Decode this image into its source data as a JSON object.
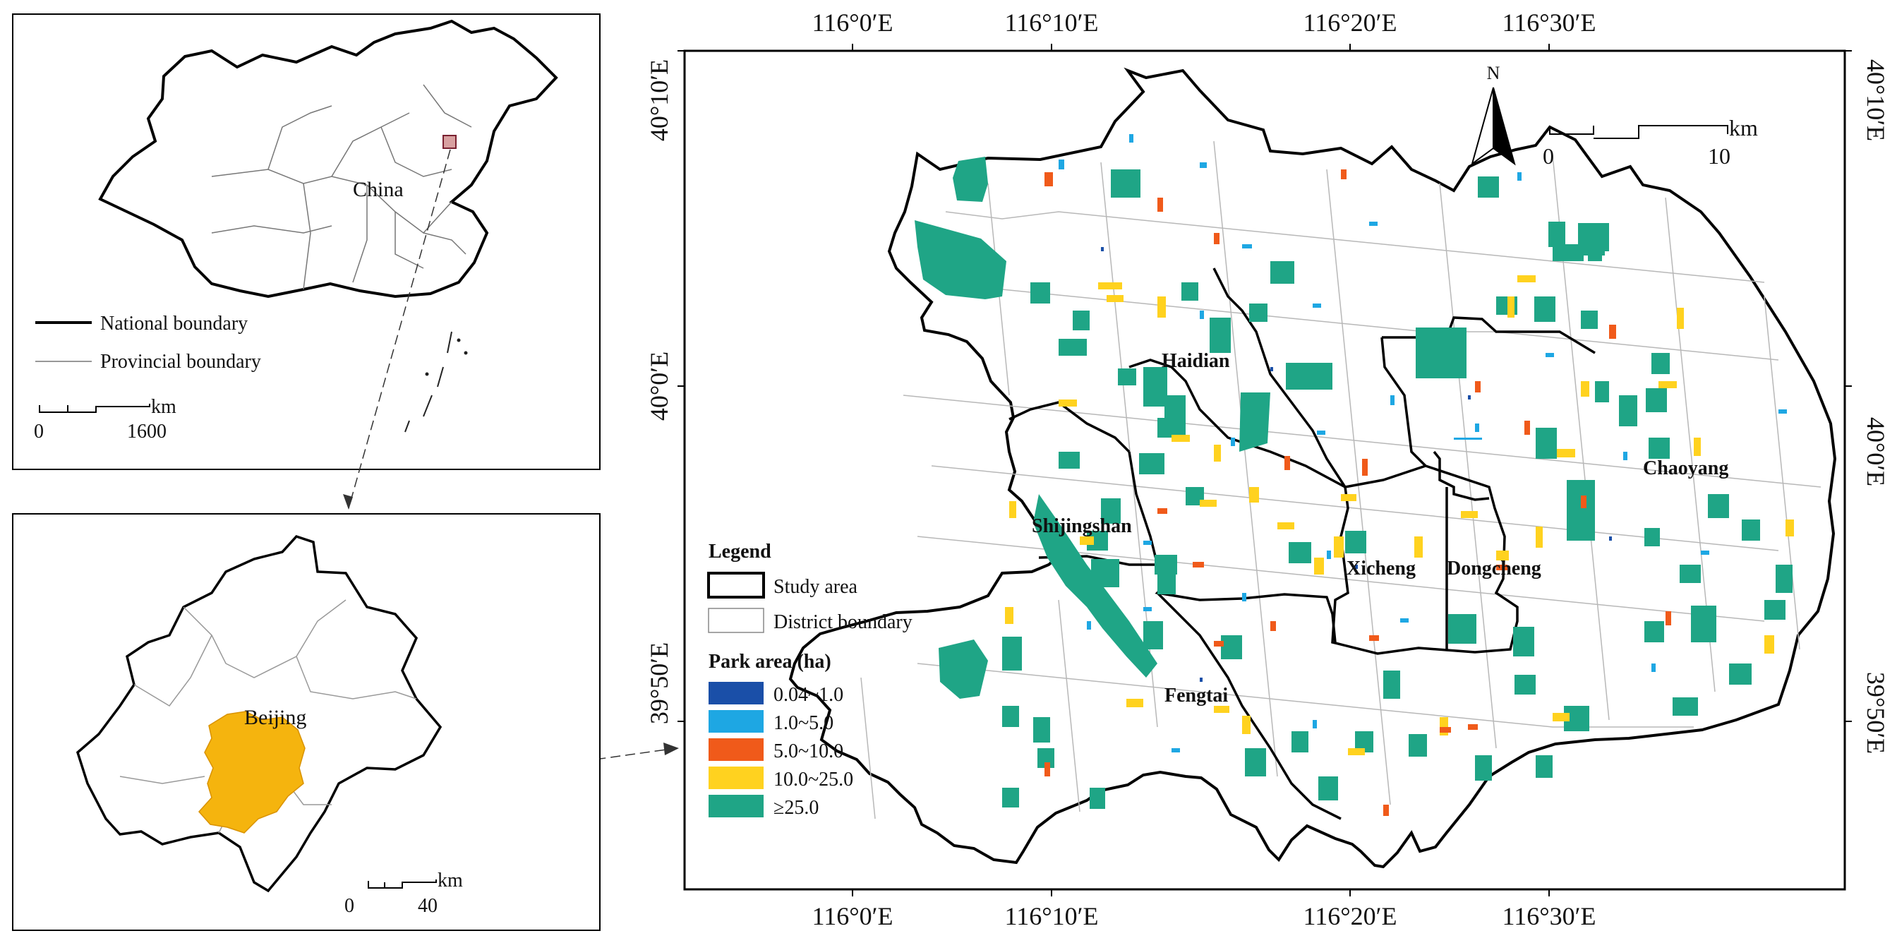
{
  "inset_china": {
    "label": "China",
    "legend": {
      "national": "National boundary",
      "provincial": "Provincial boundary"
    },
    "scalebar": {
      "unit": "km",
      "start": "0",
      "end": "1600"
    }
  },
  "inset_beijing": {
    "label": "Beijing",
    "scalebar": {
      "unit": "km",
      "start": "0",
      "end": "40"
    }
  },
  "main_map": {
    "north_label": "N",
    "scalebar": {
      "unit": "km",
      "start": "0",
      "end": "10"
    },
    "ticks": {
      "top": [
        "116°0′E",
        "116°10′E",
        "116°20′E",
        "116°30′E"
      ],
      "bottom": [
        "116°0′E",
        "116°10′E",
        "116°20′E",
        "116°30′E"
      ],
      "left": [
        "40°10′E",
        "40°0′E",
        "39°50′E"
      ],
      "right": [
        "40°10′E",
        "40°0′E",
        "39°50′E"
      ]
    },
    "districts": [
      "Haidian",
      "Chaoyang",
      "Shijingshan",
      "Xicheng",
      "Dongcheng",
      "Fengtai"
    ]
  },
  "legend": {
    "title": "Legend",
    "study_area": "Study area",
    "district_boundary": "District boundary",
    "park_title": "Park area (ha)",
    "classes": [
      {
        "label": "0.04~1.0",
        "color": "#1a4fa8"
      },
      {
        "label": "1.0~5.0",
        "color": "#1ea7e3"
      },
      {
        "label": "5.0~10.0",
        "color": "#f05a1a"
      },
      {
        "label": "10.0~25.0",
        "color": "#ffd21f"
      },
      {
        "label": "≥25.0",
        "color": "#1fa586"
      }
    ]
  },
  "colors": {
    "beijing_highlight": "#f5b40e",
    "frame": "#000000"
  }
}
